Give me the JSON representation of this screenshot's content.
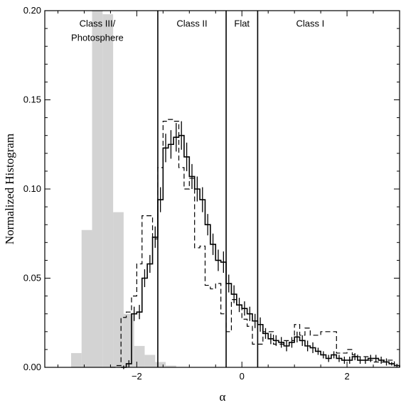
{
  "chart_data": {
    "type": "histogram",
    "xlabel": "α",
    "ylabel": "Normalized Histogram",
    "xlim": [
      -3.75,
      3.0
    ],
    "ylim": [
      0.0,
      0.2
    ],
    "x_ticks": [
      -2,
      0,
      2
    ],
    "x_tick_labels": [
      "−2",
      "0",
      "2"
    ],
    "y_ticks": [
      0.0,
      0.05,
      0.1,
      0.15,
      0.2
    ],
    "y_tick_labels": [
      "0.00",
      "0.05",
      "0.10",
      "0.15",
      "0.20"
    ],
    "grid": false,
    "class_boundaries": [
      -1.6,
      -0.3,
      0.3
    ],
    "class_labels": [
      {
        "text": "Class III/",
        "x": -2.75,
        "y": 0.191
      },
      {
        "text": "Photosphere",
        "x": -2.75,
        "y": 0.183
      },
      {
        "text": "Class II",
        "x": -0.95,
        "y": 0.191
      },
      {
        "text": "Flat",
        "x": 0.0,
        "y": 0.191
      },
      {
        "text": "Class I",
        "x": 1.3,
        "y": 0.191
      }
    ],
    "bin_width": 0.1,
    "photosphere": {
      "style": "filled-gray",
      "bin_width": 0.2,
      "bin_starts": [
        -3.25,
        -3.05,
        -2.85,
        -2.65,
        -2.45,
        -2.25,
        -2.05,
        -1.85,
        -1.65,
        -1.45
      ],
      "values": [
        0.008,
        0.077,
        0.2,
        0.198,
        0.087,
        0.03,
        0.012,
        0.007,
        0.003,
        0.001
      ]
    },
    "series": [
      {
        "style": "solid-with-errorbars",
        "bin_starts": [
          -2.3,
          -2.2,
          -2.1,
          -2.0,
          -1.9,
          -1.8,
          -1.7,
          -1.6,
          -1.5,
          -1.4,
          -1.3,
          -1.2,
          -1.1,
          -1.0,
          -0.9,
          -0.8,
          -0.7,
          -0.6,
          -0.5,
          -0.4,
          -0.3,
          -0.2,
          -0.1,
          0.0,
          0.1,
          0.2,
          0.3,
          0.4,
          0.5,
          0.6,
          0.7,
          0.8,
          0.9,
          1.0,
          1.1,
          1.2,
          1.3,
          1.4,
          1.5,
          1.6,
          1.7,
          1.8,
          1.9,
          2.0,
          2.1,
          2.2,
          2.3,
          2.4,
          2.5,
          2.6,
          2.7,
          2.8,
          2.9
        ],
        "values": [
          0.0,
          0.002,
          0.03,
          0.031,
          0.05,
          0.058,
          0.073,
          0.094,
          0.123,
          0.125,
          0.129,
          0.13,
          0.118,
          0.107,
          0.1,
          0.094,
          0.08,
          0.069,
          0.06,
          0.059,
          0.047,
          0.041,
          0.035,
          0.033,
          0.03,
          0.026,
          0.024,
          0.019,
          0.016,
          0.015,
          0.014,
          0.012,
          0.014,
          0.017,
          0.015,
          0.012,
          0.011,
          0.009,
          0.007,
          0.005,
          0.007,
          0.005,
          0.004,
          0.004,
          0.006,
          0.004,
          0.004,
          0.005,
          0.005,
          0.004,
          0.003,
          0.002,
          0.001
        ],
        "errors": [
          0.001,
          0.002,
          0.004,
          0.004,
          0.005,
          0.005,
          0.006,
          0.007,
          0.008,
          0.008,
          0.008,
          0.008,
          0.008,
          0.007,
          0.007,
          0.007,
          0.006,
          0.006,
          0.006,
          0.006,
          0.005,
          0.005,
          0.004,
          0.004,
          0.004,
          0.004,
          0.004,
          0.003,
          0.003,
          0.003,
          0.003,
          0.003,
          0.003,
          0.003,
          0.003,
          0.003,
          0.003,
          0.002,
          0.002,
          0.002,
          0.002,
          0.002,
          0.002,
          0.002,
          0.002,
          0.002,
          0.002,
          0.002,
          0.002,
          0.002,
          0.002,
          0.001,
          0.001
        ]
      },
      {
        "style": "dashed",
        "bin_starts": [
          -2.5,
          -2.4,
          -2.3,
          -2.2,
          -2.1,
          -2.0,
          -1.9,
          -1.8,
          -1.7,
          -1.6,
          -1.5,
          -1.4,
          -1.3,
          -1.2,
          -1.1,
          -1.0,
          -0.9,
          -0.8,
          -0.7,
          -0.6,
          -0.5,
          -0.4,
          -0.3,
          -0.2,
          -0.1,
          0.0,
          0.1,
          0.2,
          0.3,
          0.4,
          0.5,
          0.6,
          0.7,
          0.8,
          0.9,
          1.0,
          1.1,
          1.2,
          1.3,
          1.4,
          1.5,
          1.6,
          1.7,
          1.8,
          1.9,
          2.0,
          2.1,
          2.2,
          2.3,
          2.4,
          2.5,
          2.6,
          2.7,
          2.8
        ],
        "values": [
          0.0,
          0.001,
          0.028,
          0.031,
          0.04,
          0.058,
          0.085,
          0.085,
          0.072,
          0.112,
          0.138,
          0.139,
          0.138,
          0.112,
          0.1,
          0.106,
          0.067,
          0.068,
          0.046,
          0.044,
          0.047,
          0.03,
          0.02,
          0.038,
          0.035,
          0.027,
          0.023,
          0.013,
          0.013,
          0.02,
          0.02,
          0.013,
          0.013,
          0.015,
          0.015,
          0.024,
          0.018,
          0.022,
          0.018,
          0.018,
          0.02,
          0.02,
          0.02,
          0.008,
          0.008,
          0.01,
          0.007,
          0.006,
          0.006,
          0.004,
          0.003,
          0.003,
          0.004,
          0.004
        ]
      }
    ],
    "colors": {
      "photosphere_fill": "#d3d3d3",
      "lines": "#000000",
      "background": "#ffffff"
    }
  }
}
